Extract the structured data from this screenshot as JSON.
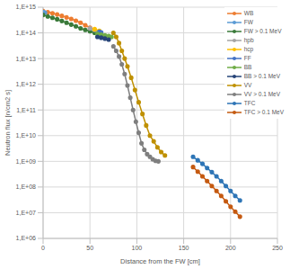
{
  "chart_data": {
    "type": "line",
    "x_label": "Distance from the FW [cm]",
    "y_label": "Neutron flux [n/cm2 s]",
    "log": "y",
    "grid": true,
    "legend": "upper right",
    "marker": "circle",
    "line_style": "solid",
    "xlim": [
      0,
      250
    ],
    "xticks": [
      0,
      50,
      100,
      150,
      200,
      250
    ],
    "ylim": [
      1000000.0,
      1000000000000000.0
    ],
    "yticks": [
      {
        "value": 1000000.0,
        "label": "1,E+06"
      },
      {
        "value": 10000000.0,
        "label": "1,E+07"
      },
      {
        "value": 100000000.0,
        "label": "1,E+08"
      },
      {
        "value": 1000000000.0,
        "label": "1,E+09"
      },
      {
        "value": 10000000000.0,
        "label": "1,E+10"
      },
      {
        "value": 100000000000.0,
        "label": "1,E+11"
      },
      {
        "value": 1000000000000.0,
        "label": "1,E+12"
      },
      {
        "value": 10000000000000.0,
        "label": "1,E+13"
      },
      {
        "value": 100000000000000.0,
        "label": "1,E+14"
      },
      {
        "value": 1000000000000000.0,
        "label": "1,E+15"
      }
    ],
    "series": [
      {
        "name": "WB",
        "color": "#ed7d31",
        "x": [
          0,
          5,
          10,
          15,
          20,
          25,
          30,
          35,
          40,
          45,
          50
        ],
        "values": [
          700000000000000.0,
          640000000000000.0,
          580000000000000.0,
          520000000000000.0,
          460000000000000.0,
          400000000000000.0,
          350000000000000.0,
          300000000000000.0,
          250000000000000.0,
          200000000000000.0,
          160000000000000.0
        ]
      },
      {
        "name": "FW",
        "color": "#5b9bd5",
        "x": [
          0,
          2
        ],
        "values": [
          650000000000000.0,
          620000000000000.0
        ]
      },
      {
        "name": "FW > 0.1 MeV",
        "color": "#3a7a3a",
        "x": [
          0,
          5,
          10,
          15,
          20,
          25,
          30,
          35,
          40,
          45,
          50,
          55
        ],
        "values": [
          500000000000000.0,
          440000000000000.0,
          390000000000000.0,
          340000000000000.0,
          290000000000000.0,
          250000000000000.0,
          210000000000000.0,
          180000000000000.0,
          150000000000000.0,
          130000000000000.0,
          115000000000000.0,
          100000000000000.0
        ]
      },
      {
        "name": "hpb",
        "color": "#a5a5a5",
        "x": [
          50,
          55,
          60
        ],
        "values": [
          150000000000000.0,
          130000000000000.0,
          110000000000000.0
        ]
      },
      {
        "name": "hcp",
        "color": "#ffc000",
        "x": [
          55,
          60
        ],
        "values": [
          140000000000000.0,
          120000000000000.0
        ]
      },
      {
        "name": "FF",
        "color": "#4472c4",
        "x": [
          60,
          62
        ],
        "values": [
          110000000000000.0,
          105000000000000.0
        ]
      },
      {
        "name": "BB",
        "color": "#70ad47",
        "x": [
          58,
          62,
          66,
          70,
          73
        ],
        "values": [
          90000000000000.0,
          85000000000000.0,
          80000000000000.0,
          75000000000000.0,
          70000000000000.0
        ]
      },
      {
        "name": "BB > 0.1 MeV",
        "color": "#264478",
        "x": [
          58,
          62,
          66,
          70
        ],
        "values": [
          70000000000000.0,
          65000000000000.0,
          60000000000000.0,
          55000000000000.0
        ]
      },
      {
        "name": "VV",
        "color": "#bf9000",
        "x": [
          75,
          78,
          81,
          84,
          87,
          90,
          94,
          98,
          102,
          106,
          110,
          114,
          118,
          122,
          126,
          130
        ],
        "values": [
          100000000000000.0,
          70000000000000.0,
          40000000000000.0,
          20000000000000.0,
          10000000000000.0,
          5000000000000.0,
          1800000000000.0,
          600000000000.0,
          200000000000.0,
          70000000000.0,
          25000000000.0,
          10000000000.0,
          6000000000.0,
          3500000000.0,
          2300000000.0,
          1700000000.0
        ]
      },
      {
        "name": "VV > 0.1 MeV",
        "color": "#7f7f7f",
        "x": [
          75,
          78,
          81,
          84,
          87,
          90,
          93,
          96,
          99,
          102,
          105,
          108,
          111,
          114,
          117,
          120,
          123
        ],
        "values": [
          30000000000000.0,
          20000000000000.0,
          12000000000000.0,
          6000000000000.0,
          2500000000000.0,
          900000000000.0,
          300000000000.0,
          100000000000.0,
          35000000000.0,
          13000000000.0,
          5000000000.0,
          2800000000.0,
          1900000000.0,
          1500000000.0,
          1200000000.0,
          1050000000.0,
          1000000000.0
        ]
      },
      {
        "name": "TFC",
        "color": "#2e75b6",
        "x": [
          160,
          165,
          170,
          175,
          180,
          185,
          190,
          195,
          200,
          205,
          210
        ],
        "values": [
          1500000000.0,
          1100000000.0,
          800000000.0,
          550000000.0,
          380000000.0,
          260000000.0,
          170000000.0,
          110000000.0,
          70000000.0,
          45000000.0,
          30000000.0
        ]
      },
      {
        "name": "TFC > 0.1 MeV",
        "color": "#c55a11",
        "x": [
          160,
          165,
          170,
          175,
          180,
          185,
          190,
          195,
          200,
          205,
          210
        ],
        "values": [
          600000000.0,
          400000000.0,
          260000000.0,
          170000000.0,
          110000000.0,
          70000000.0,
          45000000.0,
          28000000.0,
          17000000.0,
          11000000.0,
          7000000.0
        ]
      }
    ]
  }
}
